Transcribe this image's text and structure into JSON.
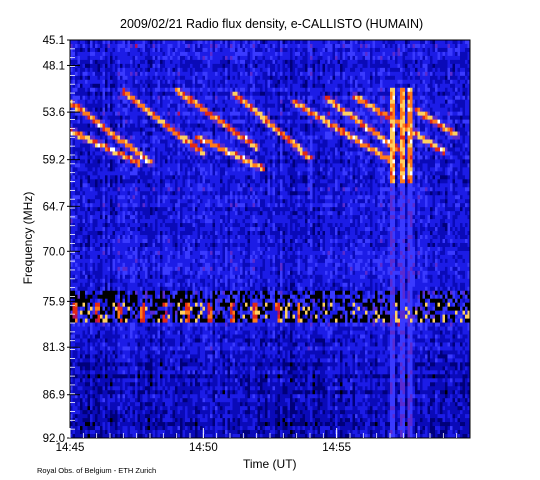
{
  "chart_data": {
    "type": "heatmap",
    "title": "2009/02/21  Radio flux density, e-CALLISTO (HUMAIN)",
    "xlabel": "Time (UT)",
    "ylabel": "Frequency (MHz)",
    "x_axis": {
      "start": "14:45",
      "end": "15:00",
      "tick_labels": [
        "14:45",
        "14:50",
        "14:55"
      ],
      "tick_values_min": [
        0,
        5,
        10
      ],
      "range_min": [
        0,
        15
      ],
      "minor_tick_every_min": 0.5
    },
    "y_axis": {
      "inverted": true,
      "range_mhz": [
        45.1,
        92.0
      ],
      "tick_labels": [
        "45.1",
        "48.1",
        "53.6",
        "59.2",
        "64.7",
        "70.0",
        "75.9",
        "81.3",
        "86.9",
        "92.0"
      ],
      "tick_values": [
        45.1,
        48.1,
        53.6,
        59.2,
        64.7,
        70.0,
        75.9,
        81.3,
        86.9,
        92.0
      ]
    },
    "colormap": [
      "#000000",
      "#000066",
      "#1a1ad0",
      "#3c3cff",
      "#a01070",
      "#e02818",
      "#ff8820",
      "#ffff80",
      "#ffffff"
    ],
    "features": {
      "interference_band_mhz": [
        74.5,
        78.5
      ],
      "bright_band_mhz": [
        76.0,
        78.3
      ],
      "sweep_tracks": [
        {
          "f_start": 52.4,
          "f_end": 59.5,
          "t_start": 0.0,
          "t_end": 3.0
        },
        {
          "f_start": 51.2,
          "f_end": 58.5,
          "t_start": 2.0,
          "t_end": 5.0
        },
        {
          "f_start": 51.0,
          "f_end": 57.8,
          "t_start": 4.0,
          "t_end": 7.0
        },
        {
          "f_start": 51.5,
          "f_end": 59.0,
          "t_start": 6.2,
          "t_end": 9.0
        },
        {
          "f_start": 52.4,
          "f_end": 59.3,
          "t_start": 8.4,
          "t_end": 12.0
        },
        {
          "f_start": 52.0,
          "f_end": 58.0,
          "t_start": 9.6,
          "t_end": 12.3
        },
        {
          "f_start": 51.8,
          "f_end": 58.2,
          "t_start": 10.7,
          "t_end": 14.0
        },
        {
          "f_start": 53.4,
          "f_end": 56.3,
          "t_start": 13.0,
          "t_end": 14.5
        },
        {
          "f_start": 55.8,
          "f_end": 59.6,
          "t_start": 0.0,
          "t_end": 2.6
        },
        {
          "f_start": 56.6,
          "f_end": 60.2,
          "t_start": 4.8,
          "t_end": 7.2
        }
      ],
      "bright_columns_min": [
        12.1,
        12.45,
        12.75
      ]
    },
    "credit": "Royal Obs. of Belgium - ETH Zurich"
  }
}
